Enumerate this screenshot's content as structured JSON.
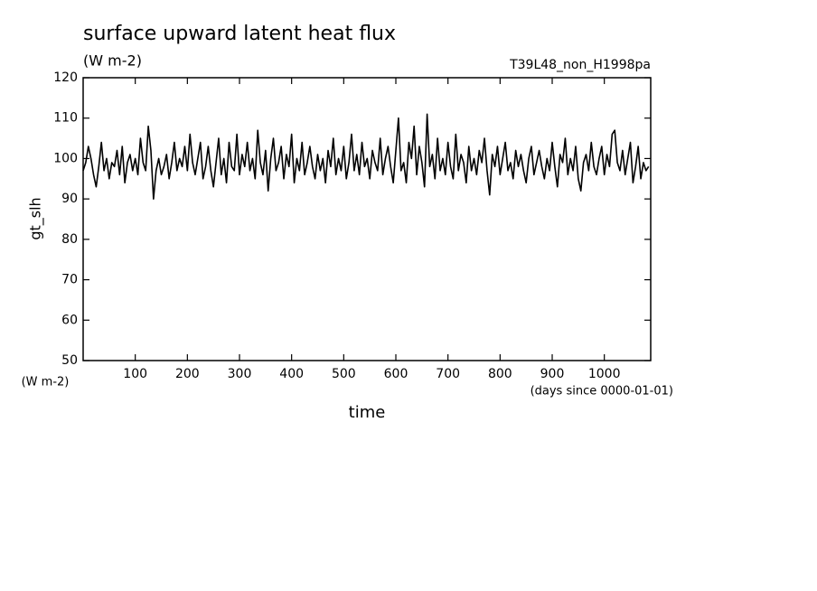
{
  "chart_data": {
    "type": "line",
    "title": "surface upward latent heat flux",
    "subtitle": "(W m-2)",
    "run_label": "T39L48_non_H1998pa",
    "y_label": "gt_slh",
    "y_units": "(W m-2)",
    "x_units": "(days since 0000-01-01)",
    "x_label": "time",
    "color": "#000000",
    "xlim": [
      0,
      1089
    ],
    "ylim": [
      50,
      120
    ],
    "xticks": [
      100,
      200,
      300,
      400,
      500,
      600,
      700,
      800,
      900,
      1000
    ],
    "yticks": [
      50,
      60,
      70,
      80,
      90,
      100,
      110,
      120
    ],
    "x": [
      0,
      5,
      10,
      15,
      20,
      25,
      30,
      35,
      40,
      45,
      50,
      55,
      60,
      65,
      70,
      75,
      80,
      85,
      90,
      95,
      100,
      105,
      110,
      115,
      120,
      125,
      130,
      135,
      140,
      145,
      150,
      155,
      160,
      165,
      170,
      175,
      180,
      185,
      190,
      195,
      200,
      205,
      210,
      215,
      220,
      225,
      230,
      235,
      240,
      245,
      250,
      255,
      260,
      265,
      270,
      275,
      280,
      285,
      290,
      295,
      300,
      305,
      310,
      315,
      320,
      325,
      330,
      335,
      340,
      345,
      350,
      355,
      360,
      365,
      370,
      375,
      380,
      385,
      390,
      395,
      400,
      405,
      410,
      415,
      420,
      425,
      430,
      435,
      440,
      445,
      450,
      455,
      460,
      465,
      470,
      475,
      480,
      485,
      490,
      495,
      500,
      505,
      510,
      515,
      520,
      525,
      530,
      535,
      540,
      545,
      550,
      555,
      560,
      565,
      570,
      575,
      580,
      585,
      590,
      595,
      600,
      605,
      610,
      615,
      620,
      625,
      630,
      635,
      640,
      645,
      650,
      655,
      660,
      665,
      670,
      675,
      680,
      685,
      690,
      695,
      700,
      705,
      710,
      715,
      720,
      725,
      730,
      735,
      740,
      745,
      750,
      755,
      760,
      765,
      770,
      775,
      780,
      785,
      790,
      795,
      800,
      805,
      810,
      815,
      820,
      825,
      830,
      835,
      840,
      845,
      850,
      855,
      860,
      865,
      870,
      875,
      880,
      885,
      890,
      895,
      900,
      905,
      910,
      915,
      920,
      925,
      930,
      935,
      940,
      945,
      950,
      955,
      960,
      965,
      970,
      975,
      980,
      985,
      990,
      995,
      1000,
      1005,
      1010,
      1015,
      1020,
      1025,
      1030,
      1035,
      1040,
      1045,
      1050,
      1055,
      1060,
      1065,
      1070,
      1075,
      1080,
      1085
    ],
    "values": [
      97,
      99,
      103,
      100,
      96,
      93,
      98,
      104,
      97,
      100,
      95,
      99,
      98,
      102,
      96,
      103,
      94,
      99,
      101,
      97,
      100,
      96,
      105,
      99,
      97,
      108,
      102,
      90,
      97,
      100,
      96,
      98,
      101,
      95,
      99,
      104,
      97,
      100,
      98,
      103,
      97,
      106,
      99,
      96,
      100,
      104,
      95,
      98,
      103,
      97,
      93,
      99,
      105,
      96,
      100,
      94,
      104,
      98,
      97,
      106,
      96,
      101,
      98,
      104,
      97,
      100,
      95,
      107,
      99,
      96,
      102,
      92,
      100,
      105,
      97,
      99,
      103,
      95,
      101,
      98,
      106,
      94,
      100,
      97,
      104,
      96,
      99,
      103,
      98,
      95,
      101,
      97,
      100,
      94,
      102,
      98,
      105,
      96,
      100,
      97,
      103,
      95,
      99,
      106,
      97,
      101,
      96,
      104,
      98,
      100,
      95,
      102,
      99,
      97,
      105,
      96,
      100,
      103,
      98,
      94,
      102,
      110,
      97,
      99,
      94,
      104,
      100,
      108,
      96,
      103,
      99,
      93,
      111,
      98,
      101,
      95,
      105,
      97,
      100,
      96,
      104,
      98,
      95,
      106,
      97,
      101,
      99,
      94,
      103,
      97,
      100,
      96,
      102,
      99,
      105,
      97,
      91,
      101,
      98,
      103,
      96,
      100,
      104,
      97,
      99,
      95,
      102,
      98,
      101,
      97,
      94,
      100,
      103,
      96,
      99,
      102,
      98,
      95,
      100,
      97,
      104,
      98,
      93,
      101,
      99,
      105,
      96,
      100,
      97,
      103,
      95,
      92,
      99,
      101,
      97,
      104,
      98,
      96,
      100,
      103,
      96,
      101,
      98,
      106,
      107,
      99,
      97,
      102,
      96,
      100,
      104,
      94,
      98,
      103,
      95,
      99,
      97,
      98
    ]
  }
}
